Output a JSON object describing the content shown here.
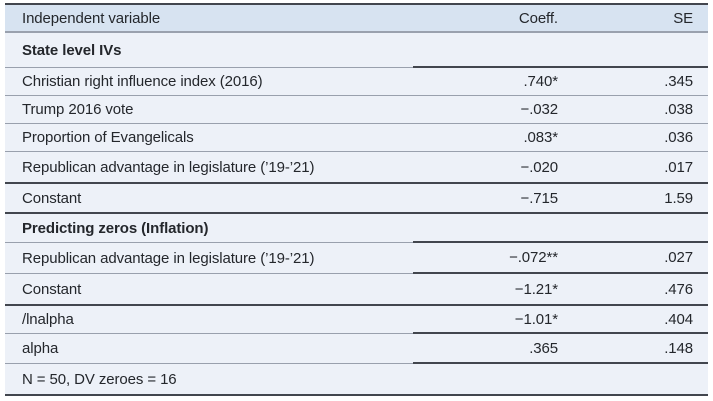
{
  "table": {
    "columns": {
      "label": "Independent variable",
      "coeff": "Coeff.",
      "se": "SE"
    },
    "rows": [
      {
        "label": "State level IVs",
        "coeff": "",
        "se": ""
      },
      {
        "label": "Christian right influence index (2016)",
        "coeff": ".740*",
        "se": ".345"
      },
      {
        "label": "Trump 2016 vote",
        "coeff": "−.032",
        "se": ".038"
      },
      {
        "label": "Proportion of Evangelicals",
        "coeff": ".083*",
        "se": ".036"
      },
      {
        "label": "Republican advantage in legislature (’19-’21)",
        "coeff": "−.020",
        "se": ".017"
      },
      {
        "label": "Constant",
        "coeff": "−.715",
        "se": "1.59"
      },
      {
        "label": "Predicting zeros (Inflation)",
        "coeff": "",
        "se": ""
      },
      {
        "label": "Republican advantage in legislature (’19-’21)",
        "coeff": "−.072**",
        "se": ".027"
      },
      {
        "label": "Constant",
        "coeff": "−1.21*",
        "se": ".476"
      },
      {
        "label": "/lnalpha",
        "coeff": "−1.01*",
        "se": ".404"
      },
      {
        "label": "alpha",
        "coeff": ".365",
        "se": ".148"
      }
    ],
    "footer": "N = 50, DV zeroes = 16"
  },
  "colors": {
    "header_bg": "#d7e3f1",
    "body_bg": "#edf1f8",
    "rule_dark": "#42464e",
    "rule_gray": "#99a0ad"
  }
}
